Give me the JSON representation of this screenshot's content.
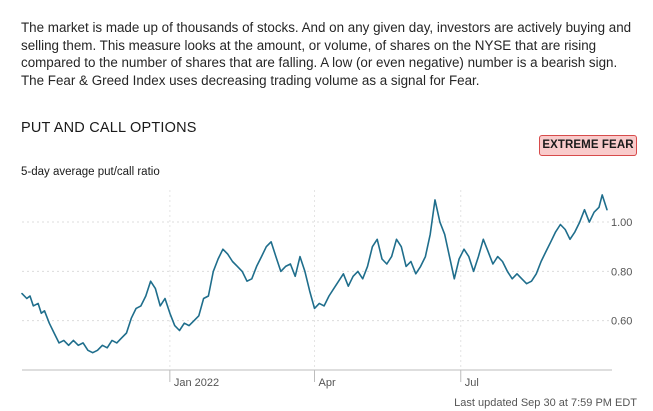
{
  "description": "The market is made up of thousands of stocks. And on any given day, investors are actively buying and selling them. This measure looks at the amount, or volume, of shares on the NYSE that are rising compared to the number of shares that are falling. A low (or even negative) number is a bearish sign. The Fear & Greed Index uses decreasing trading volume as a signal for Fear.",
  "section_title": "PUT AND CALL OPTIONS",
  "badge": {
    "label": "EXTREME FEAR",
    "background": "#f9cbcb",
    "border": "#d74b4b"
  },
  "last_updated": "Last updated Sep 30 at 7:59 PM EDT",
  "chart_data": {
    "type": "line",
    "title": "5-day average put/call ratio",
    "xlabel": "",
    "ylabel": "",
    "line_color": "#1f6e8c",
    "grid": true,
    "ylim": [
      0.4,
      1.13
    ],
    "y_ticks": [
      {
        "value": 1.0,
        "label": "1.00"
      },
      {
        "value": 0.8,
        "label": "0.80"
      },
      {
        "value": 0.6,
        "label": "0.60"
      }
    ],
    "x_range": [
      "2021-10-01",
      "2022-09-30"
    ],
    "x_ticks": [
      {
        "date": "2022-01-01",
        "label": "Jan 2022"
      },
      {
        "date": "2022-04-01",
        "label": "Apr"
      },
      {
        "date": "2022-07-01",
        "label": "Jul"
      }
    ],
    "series": [
      {
        "name": "5-day average put/call ratio",
        "points": [
          [
            "2021-10-01",
            0.71
          ],
          [
            "2021-10-04",
            0.69
          ],
          [
            "2021-10-06",
            0.7
          ],
          [
            "2021-10-08",
            0.66
          ],
          [
            "2021-10-11",
            0.67
          ],
          [
            "2021-10-13",
            0.63
          ],
          [
            "2021-10-15",
            0.64
          ],
          [
            "2021-10-18",
            0.59
          ],
          [
            "2021-10-21",
            0.55
          ],
          [
            "2021-10-24",
            0.51
          ],
          [
            "2021-10-27",
            0.52
          ],
          [
            "2021-10-30",
            0.5
          ],
          [
            "2021-11-02",
            0.52
          ],
          [
            "2021-11-05",
            0.5
          ],
          [
            "2021-11-08",
            0.51
          ],
          [
            "2021-11-11",
            0.48
          ],
          [
            "2021-11-14",
            0.47
          ],
          [
            "2021-11-17",
            0.48
          ],
          [
            "2021-11-20",
            0.5
          ],
          [
            "2021-11-23",
            0.49
          ],
          [
            "2021-11-26",
            0.52
          ],
          [
            "2021-11-29",
            0.51
          ],
          [
            "2021-12-02",
            0.53
          ],
          [
            "2021-12-05",
            0.55
          ],
          [
            "2021-12-08",
            0.61
          ],
          [
            "2021-12-11",
            0.65
          ],
          [
            "2021-12-14",
            0.66
          ],
          [
            "2021-12-17",
            0.7
          ],
          [
            "2021-12-20",
            0.76
          ],
          [
            "2021-12-23",
            0.73
          ],
          [
            "2021-12-26",
            0.66
          ],
          [
            "2021-12-29",
            0.69
          ],
          [
            "2022-01-01",
            0.63
          ],
          [
            "2022-01-04",
            0.58
          ],
          [
            "2022-01-07",
            0.56
          ],
          [
            "2022-01-10",
            0.59
          ],
          [
            "2022-01-13",
            0.58
          ],
          [
            "2022-01-16",
            0.6
          ],
          [
            "2022-01-19",
            0.62
          ],
          [
            "2022-01-22",
            0.69
          ],
          [
            "2022-01-25",
            0.7
          ],
          [
            "2022-01-28",
            0.8
          ],
          [
            "2022-01-31",
            0.85
          ],
          [
            "2022-02-03",
            0.89
          ],
          [
            "2022-02-06",
            0.87
          ],
          [
            "2022-02-09",
            0.84
          ],
          [
            "2022-02-12",
            0.82
          ],
          [
            "2022-02-15",
            0.8
          ],
          [
            "2022-02-18",
            0.76
          ],
          [
            "2022-02-21",
            0.77
          ],
          [
            "2022-02-24",
            0.82
          ],
          [
            "2022-02-27",
            0.86
          ],
          [
            "2022-03-02",
            0.9
          ],
          [
            "2022-03-05",
            0.92
          ],
          [
            "2022-03-08",
            0.86
          ],
          [
            "2022-03-11",
            0.8
          ],
          [
            "2022-03-14",
            0.82
          ],
          [
            "2022-03-17",
            0.83
          ],
          [
            "2022-03-20",
            0.78
          ],
          [
            "2022-03-23",
            0.86
          ],
          [
            "2022-03-26",
            0.8
          ],
          [
            "2022-03-29",
            0.72
          ],
          [
            "2022-04-01",
            0.65
          ],
          [
            "2022-04-04",
            0.67
          ],
          [
            "2022-04-07",
            0.66
          ],
          [
            "2022-04-10",
            0.7
          ],
          [
            "2022-04-13",
            0.73
          ],
          [
            "2022-04-16",
            0.76
          ],
          [
            "2022-04-19",
            0.79
          ],
          [
            "2022-04-22",
            0.74
          ],
          [
            "2022-04-25",
            0.78
          ],
          [
            "2022-04-28",
            0.8
          ],
          [
            "2022-05-01",
            0.77
          ],
          [
            "2022-05-04",
            0.82
          ],
          [
            "2022-05-07",
            0.9
          ],
          [
            "2022-05-10",
            0.93
          ],
          [
            "2022-05-13",
            0.85
          ],
          [
            "2022-05-16",
            0.83
          ],
          [
            "2022-05-19",
            0.86
          ],
          [
            "2022-05-22",
            0.93
          ],
          [
            "2022-05-25",
            0.9
          ],
          [
            "2022-05-28",
            0.82
          ],
          [
            "2022-05-31",
            0.84
          ],
          [
            "2022-06-03",
            0.79
          ],
          [
            "2022-06-06",
            0.82
          ],
          [
            "2022-06-09",
            0.86
          ],
          [
            "2022-06-12",
            0.95
          ],
          [
            "2022-06-15",
            1.09
          ],
          [
            "2022-06-18",
            1.0
          ],
          [
            "2022-06-21",
            0.95
          ],
          [
            "2022-06-24",
            0.86
          ],
          [
            "2022-06-27",
            0.77
          ],
          [
            "2022-06-30",
            0.85
          ],
          [
            "2022-07-03",
            0.89
          ],
          [
            "2022-07-06",
            0.86
          ],
          [
            "2022-07-09",
            0.8
          ],
          [
            "2022-07-12",
            0.86
          ],
          [
            "2022-07-15",
            0.93
          ],
          [
            "2022-07-18",
            0.88
          ],
          [
            "2022-07-21",
            0.83
          ],
          [
            "2022-07-24",
            0.86
          ],
          [
            "2022-07-27",
            0.84
          ],
          [
            "2022-07-30",
            0.8
          ],
          [
            "2022-08-02",
            0.77
          ],
          [
            "2022-08-05",
            0.79
          ],
          [
            "2022-08-08",
            0.77
          ],
          [
            "2022-08-11",
            0.75
          ],
          [
            "2022-08-14",
            0.76
          ],
          [
            "2022-08-17",
            0.79
          ],
          [
            "2022-08-20",
            0.84
          ],
          [
            "2022-08-23",
            0.88
          ],
          [
            "2022-08-26",
            0.92
          ],
          [
            "2022-08-29",
            0.96
          ],
          [
            "2022-09-01",
            0.99
          ],
          [
            "2022-09-04",
            0.97
          ],
          [
            "2022-09-07",
            0.93
          ],
          [
            "2022-09-10",
            0.96
          ],
          [
            "2022-09-13",
            1.0
          ],
          [
            "2022-09-16",
            1.05
          ],
          [
            "2022-09-19",
            1.0
          ],
          [
            "2022-09-22",
            1.04
          ],
          [
            "2022-09-25",
            1.06
          ],
          [
            "2022-09-27",
            1.11
          ],
          [
            "2022-09-30",
            1.05
          ]
        ]
      }
    ]
  }
}
